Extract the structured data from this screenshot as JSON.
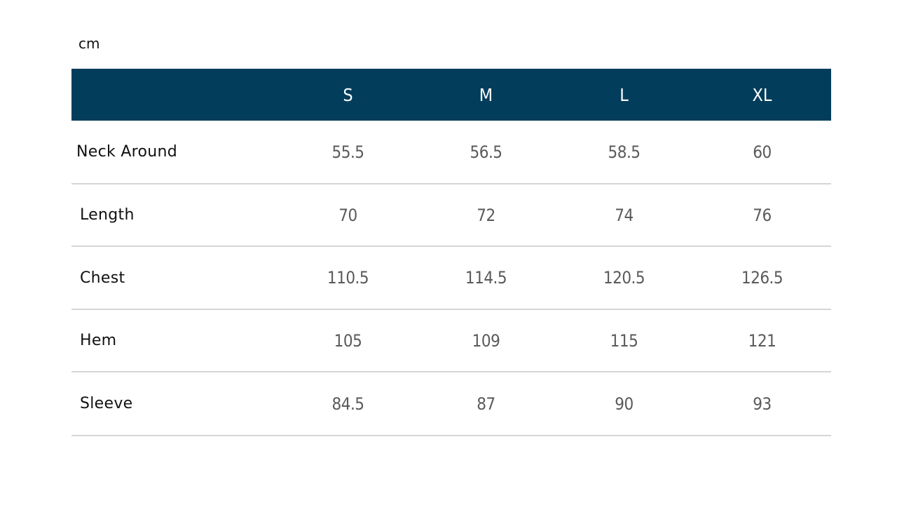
{
  "unit": "cm",
  "table": {
    "headers": [
      "",
      "S",
      "M",
      "L",
      "XL"
    ],
    "rows": [
      {
        "label": "Neck Around",
        "values": [
          "55.5",
          "56.5",
          "58.5",
          "60"
        ]
      },
      {
        "label": "Length",
        "values": [
          "70",
          "72",
          "74",
          "76"
        ]
      },
      {
        "label": "Chest",
        "values": [
          "110.5",
          "114.5",
          "120.5",
          "126.5"
        ]
      },
      {
        "label": "Hem",
        "values": [
          "105",
          "109",
          "115",
          "121"
        ]
      },
      {
        "label": "Sleeve",
        "values": [
          "84.5",
          "87",
          "90",
          "93"
        ]
      }
    ]
  },
  "colors": {
    "header_bg": "#023d5c",
    "header_text": "#ffffff",
    "divider": "#d6d6d6",
    "value_text": "#5a5a5a"
  }
}
